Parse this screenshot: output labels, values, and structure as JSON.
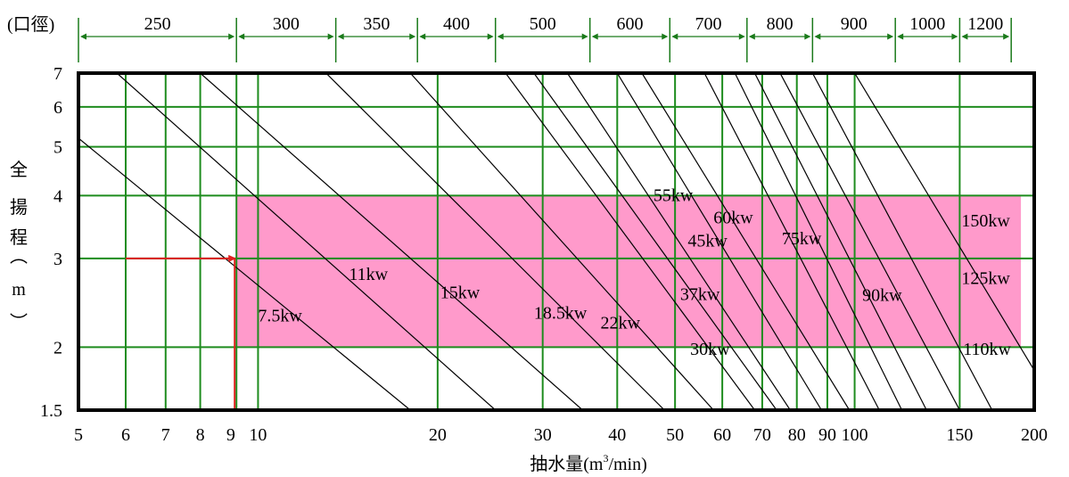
{
  "chart_data": {
    "type": "line",
    "title": "",
    "xlabel_prefix": "抽水量(m",
    "xlabel_sup": "3",
    "xlabel_suffix": "/min)",
    "ylabel": [
      "全",
      "揚",
      "程",
      "︵",
      "m",
      "︶"
    ],
    "x_scale": "log",
    "y_scale": "log",
    "xlim": [
      5,
      200
    ],
    "ylim": [
      1.5,
      7
    ],
    "x_ticks": [
      5,
      6,
      7,
      8,
      9,
      10,
      20,
      30,
      40,
      50,
      60,
      70,
      80,
      90,
      100,
      150,
      200
    ],
    "x_tick_labels": [
      "5",
      "6",
      "7",
      "8",
      "9",
      "10",
      "20",
      "30",
      "40",
      "50",
      "60",
      "70",
      "80",
      "90",
      "100",
      "150",
      "200"
    ],
    "y_ticks": [
      1.5,
      2,
      3,
      4,
      5,
      6,
      7
    ],
    "y_tick_labels": [
      "1.5",
      "2",
      "3",
      "4",
      "5",
      "6",
      "7"
    ],
    "grid": true,
    "grid_color": "#1e8c1e",
    "v_grid_x": [
      6,
      7,
      8,
      9.2,
      10,
      20,
      30,
      40,
      50,
      60,
      70,
      80,
      90,
      100,
      150
    ],
    "h_grid_y": [
      2,
      3,
      4,
      5,
      6
    ],
    "highlight_regions": [
      {
        "x": [
          9.2,
          190
        ],
        "y": [
          2,
          4
        ],
        "color": "#ff9acb"
      }
    ],
    "highlight_divider": {
      "x": 150,
      "y": [
        2,
        4
      ]
    },
    "diameter_label": "(口徑)",
    "diameter_segments": [
      {
        "label": "250",
        "x": [
          5,
          9.2
        ]
      },
      {
        "label": "300",
        "x": [
          9.2,
          13.5
        ]
      },
      {
        "label": "350",
        "x": [
          13.5,
          18.5
        ]
      },
      {
        "label": "400",
        "x": [
          18.5,
          25
        ]
      },
      {
        "label": "500",
        "x": [
          25,
          36
        ]
      },
      {
        "label": "600",
        "x": [
          36,
          49
        ]
      },
      {
        "label": "700",
        "x": [
          49,
          66
        ]
      },
      {
        "label": "800",
        "x": [
          66,
          85
        ]
      },
      {
        "label": "900",
        "x": [
          85,
          117
        ]
      },
      {
        "label": "1000",
        "x": [
          117,
          150
        ]
      },
      {
        "label": "1200",
        "x": [
          150,
          183
        ]
      }
    ],
    "power_lines": [
      {
        "x": [
          5,
          18
        ],
        "y": [
          5.2,
          1.5
        ]
      },
      {
        "x": [
          5.8,
          25
        ],
        "y": [
          7,
          1.5
        ]
      },
      {
        "x": [
          8,
          35
        ],
        "y": [
          7,
          1.5
        ]
      },
      {
        "x": [
          13,
          48
        ],
        "y": [
          7,
          1.5
        ]
      },
      {
        "x": [
          18,
          58
        ],
        "y": [
          7,
          1.5
        ]
      },
      {
        "x": [
          26,
          68
        ],
        "y": [
          7,
          1.5
        ]
      },
      {
        "x": [
          29,
          74
        ],
        "y": [
          7,
          1.5
        ]
      },
      {
        "x": [
          33,
          78
        ],
        "y": [
          7,
          1.5
        ]
      },
      {
        "x": [
          40,
          88
        ],
        "y": [
          7,
          1.5
        ]
      },
      {
        "x": [
          44,
          98
        ],
        "y": [
          7,
          1.5
        ]
      },
      {
        "x": [
          56,
          110
        ],
        "y": [
          7,
          1.5
        ]
      },
      {
        "x": [
          63,
          120
        ],
        "y": [
          7,
          1.5
        ]
      },
      {
        "x": [
          68,
          132
        ],
        "y": [
          7,
          1.5
        ]
      },
      {
        "x": [
          75,
          150
        ],
        "y": [
          7,
          1.5
        ]
      },
      {
        "x": [
          85,
          170
        ],
        "y": [
          7,
          1.5
        ]
      },
      {
        "x": [
          100,
          200
        ],
        "y": [
          7,
          1.8
        ]
      }
    ],
    "power_labels": [
      {
        "text": "7.5kw",
        "x": 10,
        "y": 2.25
      },
      {
        "text": "11kw",
        "x": 14.2,
        "y": 2.72
      },
      {
        "text": "15kw",
        "x": 20.2,
        "y": 2.5
      },
      {
        "text": "18.5kw",
        "x": 29,
        "y": 2.28
      },
      {
        "text": "22kw",
        "x": 37.5,
        "y": 2.18
      },
      {
        "text": "30kw",
        "x": 53,
        "y": 1.93
      },
      {
        "text": "37kw",
        "x": 51,
        "y": 2.48
      },
      {
        "text": "45kw",
        "x": 52.5,
        "y": 3.17
      },
      {
        "text": "55kw",
        "x": 46,
        "y": 3.9
      },
      {
        "text": "60kw",
        "x": 58,
        "y": 3.52
      },
      {
        "text": "75kw",
        "x": 75.5,
        "y": 3.2
      },
      {
        "text": "90kw",
        "x": 103,
        "y": 2.47
      },
      {
        "text": "110kw",
        "x": 152,
        "y": 1.93
      },
      {
        "text": "125kw",
        "x": 151,
        "y": 2.67
      },
      {
        "text": "150kw",
        "x": 151,
        "y": 3.47
      }
    ],
    "operating_point": {
      "x": 9.2,
      "y": 3,
      "color": "#e02020"
    }
  }
}
